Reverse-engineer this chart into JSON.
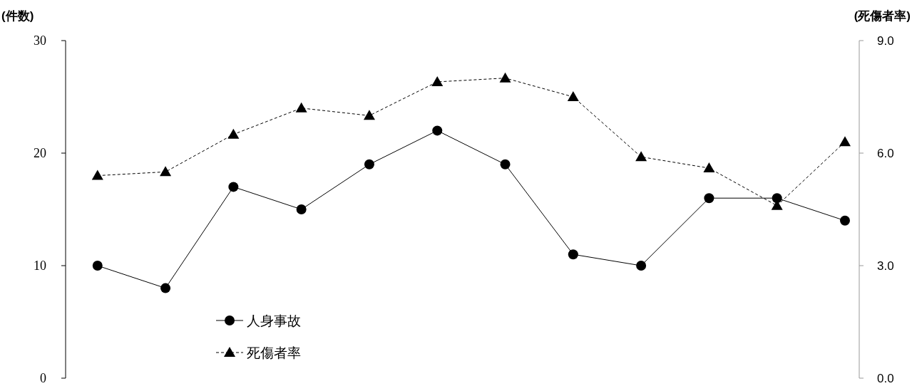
{
  "chart_data": {
    "type": "line",
    "ylabel": "(件数)",
    "y2label": "(死傷者率)",
    "categories": [
      null,
      null,
      null,
      null,
      null,
      null,
      null,
      null,
      null,
      null,
      null,
      null
    ],
    "series": [
      {
        "name": "人身事故",
        "color": "#000000",
        "marker": "circle",
        "line_style": "solid",
        "values": [
          10,
          8,
          17,
          15,
          19,
          22,
          19,
          11,
          10,
          16,
          16,
          14
        ]
      },
      {
        "name": "死傷者率",
        "color": "#000000",
        "marker": "triangle",
        "line_style": "dashed",
        "axis": "y2",
        "values": [
          5.4,
          5.5,
          6.5,
          7.2,
          7.0,
          7.9,
          8.0,
          7.5,
          5.9,
          5.6,
          4.6,
          6.3
        ]
      }
    ],
    "ylim": [
      0,
      30
    ],
    "yticks": [
      0,
      10,
      20,
      30
    ],
    "y2lim": [
      0,
      9
    ],
    "y2ticks": [
      {
        "value": 0,
        "label": "0.0"
      },
      {
        "value": 3,
        "label": "3.0"
      },
      {
        "value": 6,
        "label": "6.0"
      },
      {
        "value": 9,
        "label": "9.0"
      }
    ],
    "legend": "bottom left",
    "grid": false
  }
}
